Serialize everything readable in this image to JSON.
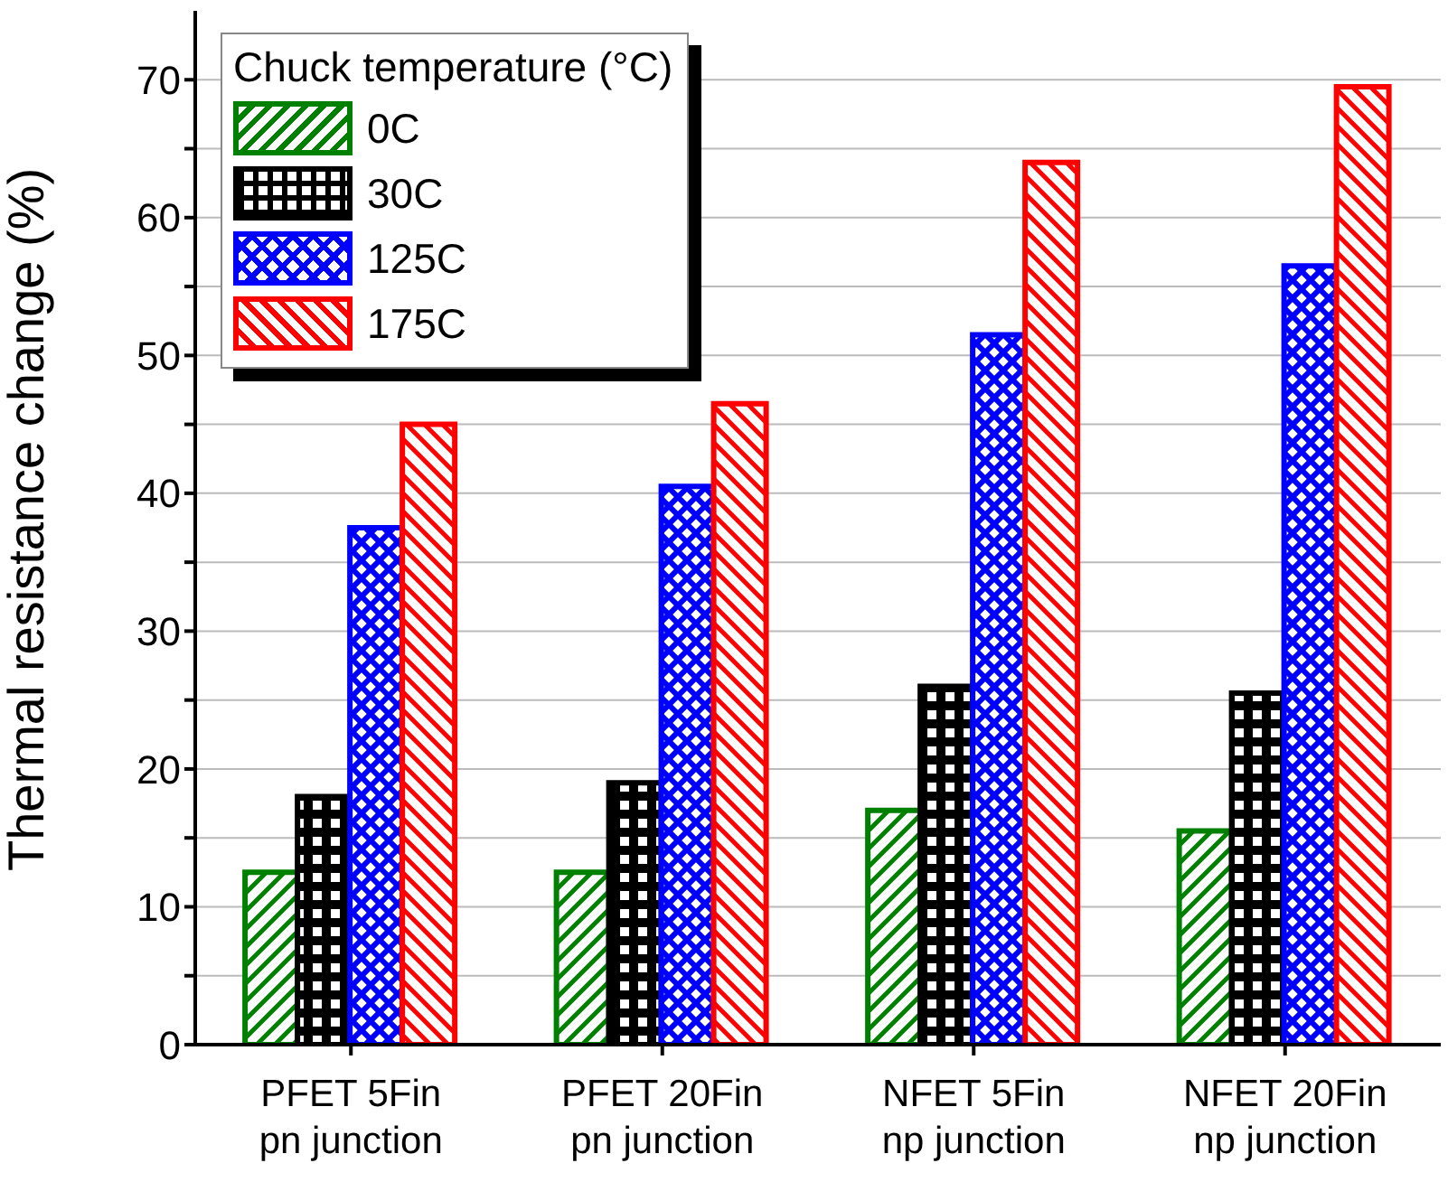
{
  "chart_data": {
    "type": "bar",
    "ylabel": "Thermal resistance change (%)",
    "legend_title": "Chuck temperature (°C)",
    "categories": [
      "PFET 5Fin\npn junction",
      "PFET 20Fin\npn junction",
      "NFET 5Fin\nnp junction",
      "NFET 20Fin\nnp junction"
    ],
    "series": [
      {
        "name": "0C",
        "color": "#008000",
        "values": [
          12.5,
          12.5,
          17,
          15.5
        ]
      },
      {
        "name": "30C",
        "color": "#000000",
        "values": [
          18,
          19,
          26,
          25.5
        ]
      },
      {
        "name": "125C",
        "color": "#0000ff",
        "values": [
          37.5,
          40.5,
          51.5,
          56.5
        ]
      },
      {
        "name": "175C",
        "color": "#ff0000",
        "values": [
          45,
          46.5,
          64,
          69.5
        ]
      }
    ],
    "ylim": [
      0,
      75
    ],
    "yticks": [
      0,
      {
        "value": 5,
        "label": null
      },
      10,
      {
        "value": 15,
        "label": null
      },
      20,
      {
        "value": 25,
        "label": null
      },
      30,
      {
        "value": 35,
        "label": null
      },
      40,
      {
        "value": 45,
        "label": null
      },
      50,
      {
        "value": 55,
        "label": null
      },
      60,
      {
        "value": 65,
        "label": null
      },
      70
    ],
    "grid": "y",
    "legend": "top left"
  }
}
